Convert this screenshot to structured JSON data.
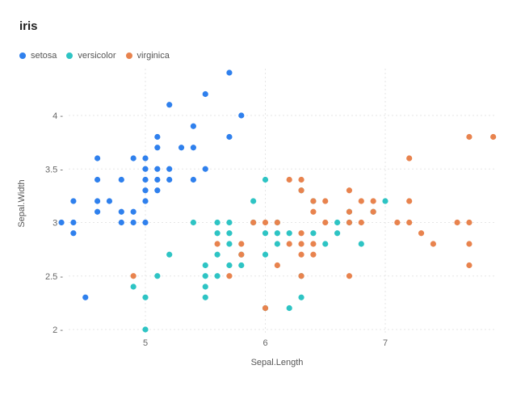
{
  "chart_data": {
    "type": "scatter",
    "title": "iris",
    "xlabel": "Sepal.Length",
    "ylabel": "Sepal.Width",
    "xlim": [
      4.3,
      7.9
    ],
    "ylim": [
      2.0,
      4.4
    ],
    "x_ticks": [
      5,
      6,
      7
    ],
    "y_ticks": [
      2,
      2.5,
      3,
      3.5,
      4
    ],
    "x_tick_labels": [
      "5",
      "6",
      "7"
    ],
    "y_tick_labels": [
      "2 -",
      "2.5 -",
      "3 -",
      "3.5 -",
      "4 -"
    ],
    "grid": true,
    "legend_position": "top-left",
    "series": [
      {
        "name": "setosa",
        "color": "#2F80ED",
        "points": [
          [
            4.3,
            3.0
          ],
          [
            4.4,
            2.9
          ],
          [
            4.4,
            3.0
          ],
          [
            4.4,
            3.2
          ],
          [
            4.5,
            2.3
          ],
          [
            4.6,
            3.1
          ],
          [
            4.6,
            3.2
          ],
          [
            4.6,
            3.4
          ],
          [
            4.6,
            3.6
          ],
          [
            4.7,
            3.2
          ],
          [
            4.8,
            3.0
          ],
          [
            4.8,
            3.1
          ],
          [
            4.8,
            3.4
          ],
          [
            4.9,
            3.0
          ],
          [
            4.9,
            3.1
          ],
          [
            4.9,
            3.6
          ],
          [
            5.0,
            3.0
          ],
          [
            5.0,
            3.2
          ],
          [
            5.0,
            3.3
          ],
          [
            5.0,
            3.4
          ],
          [
            5.0,
            3.5
          ],
          [
            5.0,
            3.6
          ],
          [
            5.1,
            3.3
          ],
          [
            5.1,
            3.4
          ],
          [
            5.1,
            3.5
          ],
          [
            5.1,
            3.7
          ],
          [
            5.1,
            3.8
          ],
          [
            5.2,
            3.4
          ],
          [
            5.2,
            3.5
          ],
          [
            5.2,
            4.1
          ],
          [
            5.3,
            3.7
          ],
          [
            5.4,
            3.4
          ],
          [
            5.4,
            3.7
          ],
          [
            5.4,
            3.9
          ],
          [
            5.5,
            3.5
          ],
          [
            5.5,
            4.2
          ],
          [
            5.7,
            3.8
          ],
          [
            5.7,
            4.4
          ],
          [
            5.8,
            4.0
          ]
        ]
      },
      {
        "name": "versicolor",
        "color": "#2EC4C4",
        "points": [
          [
            4.9,
            2.4
          ],
          [
            5.0,
            2.0
          ],
          [
            5.0,
            2.3
          ],
          [
            5.1,
            2.5
          ],
          [
            5.2,
            2.7
          ],
          [
            5.4,
            3.0
          ],
          [
            5.5,
            2.3
          ],
          [
            5.5,
            2.4
          ],
          [
            5.5,
            2.5
          ],
          [
            5.5,
            2.6
          ],
          [
            5.6,
            2.5
          ],
          [
            5.6,
            2.7
          ],
          [
            5.6,
            2.9
          ],
          [
            5.6,
            3.0
          ],
          [
            5.7,
            2.6
          ],
          [
            5.7,
            2.8
          ],
          [
            5.7,
            2.9
          ],
          [
            5.7,
            3.0
          ],
          [
            5.8,
            2.6
          ],
          [
            5.8,
            2.7
          ],
          [
            5.9,
            3.0
          ],
          [
            5.9,
            3.2
          ],
          [
            6.0,
            2.2
          ],
          [
            6.0,
            2.7
          ],
          [
            6.0,
            2.9
          ],
          [
            6.0,
            3.4
          ],
          [
            6.1,
            2.8
          ],
          [
            6.1,
            2.9
          ],
          [
            6.1,
            3.0
          ],
          [
            6.2,
            2.2
          ],
          [
            6.2,
            2.9
          ],
          [
            6.3,
            2.3
          ],
          [
            6.3,
            2.5
          ],
          [
            6.3,
            3.3
          ],
          [
            6.4,
            2.9
          ],
          [
            6.4,
            3.2
          ],
          [
            6.5,
            2.8
          ],
          [
            6.6,
            2.9
          ],
          [
            6.6,
            3.0
          ],
          [
            6.7,
            3.0
          ],
          [
            6.7,
            3.1
          ],
          [
            6.8,
            2.8
          ],
          [
            6.9,
            3.1
          ],
          [
            7.0,
            3.2
          ]
        ]
      },
      {
        "name": "virginica",
        "color": "#E8834E",
        "points": [
          [
            4.9,
            2.5
          ],
          [
            5.6,
            2.8
          ],
          [
            5.7,
            2.5
          ],
          [
            5.8,
            2.7
          ],
          [
            5.8,
            2.8
          ],
          [
            5.9,
            3.0
          ],
          [
            6.0,
            2.2
          ],
          [
            6.0,
            3.0
          ],
          [
            6.1,
            2.6
          ],
          [
            6.1,
            3.0
          ],
          [
            6.2,
            2.8
          ],
          [
            6.2,
            3.4
          ],
          [
            6.3,
            2.5
          ],
          [
            6.3,
            2.7
          ],
          [
            6.3,
            2.8
          ],
          [
            6.3,
            2.9
          ],
          [
            6.3,
            3.3
          ],
          [
            6.3,
            3.4
          ],
          [
            6.4,
            2.7
          ],
          [
            6.4,
            2.8
          ],
          [
            6.4,
            3.1
          ],
          [
            6.4,
            3.2
          ],
          [
            6.5,
            3.0
          ],
          [
            6.5,
            3.2
          ],
          [
            6.7,
            2.5
          ],
          [
            6.7,
            3.0
          ],
          [
            6.7,
            3.1
          ],
          [
            6.7,
            3.3
          ],
          [
            6.8,
            3.0
          ],
          [
            6.8,
            3.2
          ],
          [
            6.9,
            3.1
          ],
          [
            6.9,
            3.2
          ],
          [
            7.1,
            3.0
          ],
          [
            7.2,
            3.0
          ],
          [
            7.2,
            3.2
          ],
          [
            7.2,
            3.6
          ],
          [
            7.3,
            2.9
          ],
          [
            7.4,
            2.8
          ],
          [
            7.6,
            3.0
          ],
          [
            7.7,
            2.6
          ],
          [
            7.7,
            2.8
          ],
          [
            7.7,
            3.0
          ],
          [
            7.7,
            3.8
          ],
          [
            7.9,
            3.8
          ]
        ]
      }
    ]
  }
}
